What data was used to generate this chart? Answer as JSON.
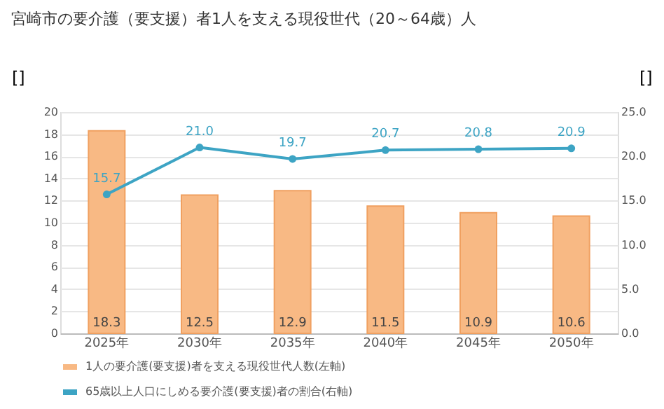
{
  "chart_data": {
    "type": "bar",
    "title": "宮崎市の要介護（要支援）者1人を支える現役世代（20～64歳）人",
    "categories": [
      "2025年",
      "2030年",
      "2035年",
      "2040年",
      "2045年",
      "2050年"
    ],
    "series": [
      {
        "name": "1人の要介護(要支援)者を支える現役世代人数(左軸)",
        "color": "#f8b984",
        "values": [
          18.3,
          12.5,
          12.9,
          11.5,
          10.9,
          10.6
        ]
      },
      {
        "name": "65歳以上人口にしめる要介護(要支援)者の割合(右軸)",
        "type": "line",
        "axis": "y2",
        "color": "#3da4c4",
        "marker": "circle",
        "values": [
          15.7,
          21.0,
          19.7,
          20.7,
          20.8,
          20.9
        ],
        "value_labels": [
          "15.7",
          "21.0",
          "19.7",
          "20.7",
          "20.8",
          "20.9"
        ]
      }
    ],
    "ylabel": "[]",
    "y2label": "[]",
    "ylim": [
      0,
      20
    ],
    "yticks": [
      0,
      2,
      4,
      6,
      8,
      10,
      12,
      14,
      16,
      18,
      20
    ],
    "y2lim": [
      0,
      25
    ],
    "y2ticks": [
      {
        "value": 0,
        "label": "0.0"
      },
      {
        "value": 5,
        "label": "5.0"
      },
      {
        "value": 10,
        "label": "10.0"
      },
      {
        "value": 15,
        "label": "15.0"
      },
      {
        "value": 20,
        "label": "20.0"
      },
      {
        "value": 25,
        "label": "25.0"
      }
    ],
    "data_labels": true,
    "grid": "y",
    "legend": "bottom"
  }
}
